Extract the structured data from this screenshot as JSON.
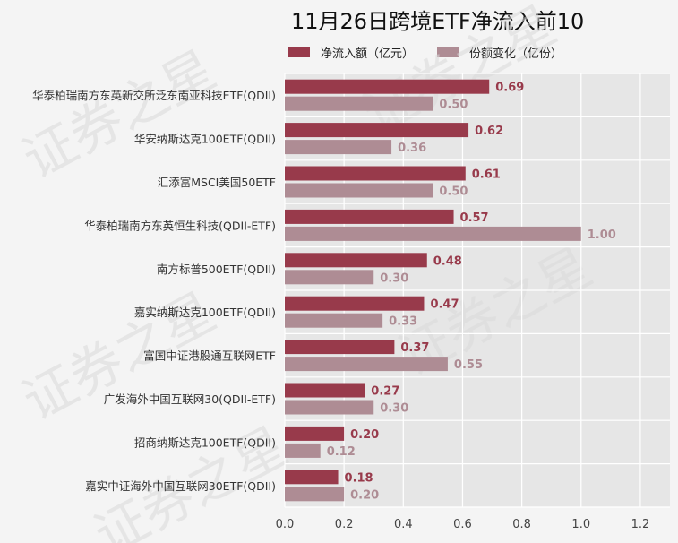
{
  "chart_data": {
    "type": "bar",
    "orientation": "horizontal",
    "title": "11月26日跨境ETF净流入前10",
    "categories": [
      "华泰柏瑞南方东英新交所泛东南亚科技ETF(QDII)",
      "华安纳斯达克100ETF(QDII)",
      "汇添富MSCI美国50ETF",
      "华泰柏瑞南方东英恒生科技(QDII-ETF)",
      "南方标普500ETF(QDII)",
      "嘉实纳斯达克100ETF(QDII)",
      "富国中证港股通互联网ETF",
      "广发海外中国互联网30(QDII-ETF)",
      "招商纳斯达克100ETF(QDII)",
      "嘉实中证海外中国互联网30ETF(QDII)"
    ],
    "series": [
      {
        "name": "净流入额（亿元）",
        "color": "#983a4b",
        "values": [
          0.69,
          0.62,
          0.61,
          0.57,
          0.48,
          0.47,
          0.37,
          0.27,
          0.2,
          0.18
        ]
      },
      {
        "name": "份额变化（亿份）",
        "color": "#ae8c94",
        "values": [
          0.5,
          0.36,
          0.5,
          1.0,
          0.3,
          0.33,
          0.55,
          0.3,
          0.12,
          0.2
        ]
      }
    ],
    "xlim": [
      0,
      1.3
    ],
    "xticks": [
      "0.0",
      "0.2",
      "0.4",
      "0.6",
      "0.8",
      "1.0",
      "1.2"
    ],
    "grid": true,
    "legend_position": "top",
    "plot_background": "#e6e6e6",
    "value_label_decimals": 2
  },
  "watermark": "证券之星"
}
